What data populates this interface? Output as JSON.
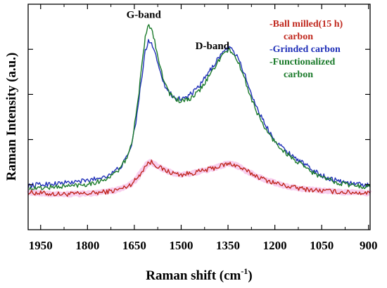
{
  "chart_data": {
    "type": "line",
    "title": "",
    "xlabel": "Raman shift (cm",
    "xlabel_sup": "-1",
    "xlabel_end": ")",
    "ylabel": "Raman Intensity (a.u.)",
    "xlim": [
      1990,
      895
    ],
    "ylim": [
      0,
      1
    ],
    "x_reversed": true,
    "x_ticks": [
      1950,
      1800,
      1650,
      1500,
      1350,
      1200,
      1050,
      900
    ],
    "x_tick_labels": [
      "1950",
      "1800",
      "1650",
      "1500",
      "1350",
      "1200",
      "1050",
      "900"
    ],
    "y_ticks_minor": [
      0.2,
      0.4,
      0.6,
      0.8
    ],
    "grid": false,
    "legend_position": "top-right",
    "annotations": [
      {
        "text": "G-band",
        "x": 1620,
        "y": 0.94
      },
      {
        "text": "D-band",
        "x": 1400,
        "y": 0.8
      }
    ],
    "series": [
      {
        "name": "Ball milled(15 h) carbon",
        "legend_lines": [
          "-Ball milled(15 h)",
          "carbon"
        ],
        "color": "#c0281e",
        "halo_color": "#f7c9ec",
        "x": [
          1990,
          1950,
          1900,
          1850,
          1800,
          1760,
          1720,
          1690,
          1665,
          1645,
          1625,
          1610,
          1595,
          1580,
          1560,
          1530,
          1500,
          1470,
          1440,
          1410,
          1380,
          1360,
          1340,
          1320,
          1300,
          1270,
          1240,
          1210,
          1180,
          1150,
          1120,
          1090,
          1060,
          1030,
          1000,
          970,
          940,
          910,
          895
        ],
        "y": [
          0.165,
          0.162,
          0.158,
          0.158,
          0.16,
          0.165,
          0.172,
          0.182,
          0.198,
          0.222,
          0.26,
          0.292,
          0.3,
          0.286,
          0.268,
          0.252,
          0.244,
          0.25,
          0.258,
          0.268,
          0.28,
          0.289,
          0.292,
          0.283,
          0.266,
          0.246,
          0.226,
          0.212,
          0.2,
          0.19,
          0.183,
          0.178,
          0.174,
          0.171,
          0.168,
          0.166,
          0.165,
          0.163,
          0.162
        ]
      },
      {
        "name": "Grinded carbon",
        "legend_lines": [
          "-Grinded carbon"
        ],
        "color": "#1f2fb8",
        "x": [
          1990,
          1950,
          1900,
          1850,
          1800,
          1760,
          1720,
          1690,
          1670,
          1655,
          1645,
          1635,
          1625,
          1615,
          1605,
          1595,
          1585,
          1570,
          1555,
          1540,
          1520,
          1500,
          1480,
          1460,
          1440,
          1420,
          1400,
          1385,
          1370,
          1355,
          1345,
          1335,
          1325,
          1310,
          1295,
          1280,
          1260,
          1240,
          1220,
          1200,
          1180,
          1160,
          1140,
          1120,
          1100,
          1080,
          1060,
          1040,
          1020,
          1000,
          980,
          960,
          940,
          920,
          900,
          895
        ],
        "y": [
          0.195,
          0.2,
          0.205,
          0.21,
          0.218,
          0.23,
          0.25,
          0.285,
          0.33,
          0.4,
          0.48,
          0.58,
          0.69,
          0.79,
          0.84,
          0.83,
          0.79,
          0.72,
          0.65,
          0.61,
          0.585,
          0.58,
          0.59,
          0.61,
          0.64,
          0.68,
          0.72,
          0.755,
          0.78,
          0.8,
          0.803,
          0.795,
          0.775,
          0.74,
          0.68,
          0.62,
          0.55,
          0.49,
          0.44,
          0.4,
          0.37,
          0.345,
          0.325,
          0.305,
          0.285,
          0.265,
          0.248,
          0.235,
          0.225,
          0.218,
          0.212,
          0.207,
          0.203,
          0.2,
          0.198,
          0.197
        ]
      },
      {
        "name": "Functionalized carbon",
        "legend_lines": [
          "-Functionalized",
          "carbon"
        ],
        "color": "#1a7a2a",
        "x": [
          1990,
          1950,
          1900,
          1850,
          1800,
          1760,
          1720,
          1690,
          1670,
          1655,
          1645,
          1635,
          1625,
          1615,
          1607,
          1600,
          1592,
          1585,
          1570,
          1555,
          1540,
          1520,
          1500,
          1480,
          1460,
          1440,
          1420,
          1400,
          1385,
          1370,
          1355,
          1345,
          1335,
          1325,
          1310,
          1295,
          1280,
          1260,
          1240,
          1220,
          1200,
          1180,
          1160,
          1140,
          1120,
          1100,
          1080,
          1060,
          1040,
          1020,
          1000,
          980,
          960,
          940,
          920,
          900,
          895
        ],
        "y": [
          0.18,
          0.185,
          0.19,
          0.195,
          0.203,
          0.215,
          0.24,
          0.28,
          0.33,
          0.41,
          0.5,
          0.61,
          0.74,
          0.86,
          0.905,
          0.9,
          0.88,
          0.84,
          0.74,
          0.66,
          0.61,
          0.58,
          0.57,
          0.575,
          0.59,
          0.62,
          0.66,
          0.705,
          0.74,
          0.77,
          0.79,
          0.795,
          0.785,
          0.76,
          0.72,
          0.66,
          0.6,
          0.53,
          0.47,
          0.425,
          0.39,
          0.36,
          0.335,
          0.312,
          0.292,
          0.272,
          0.255,
          0.24,
          0.228,
          0.218,
          0.21,
          0.204,
          0.199,
          0.195,
          0.192,
          0.19,
          0.189
        ]
      }
    ]
  }
}
